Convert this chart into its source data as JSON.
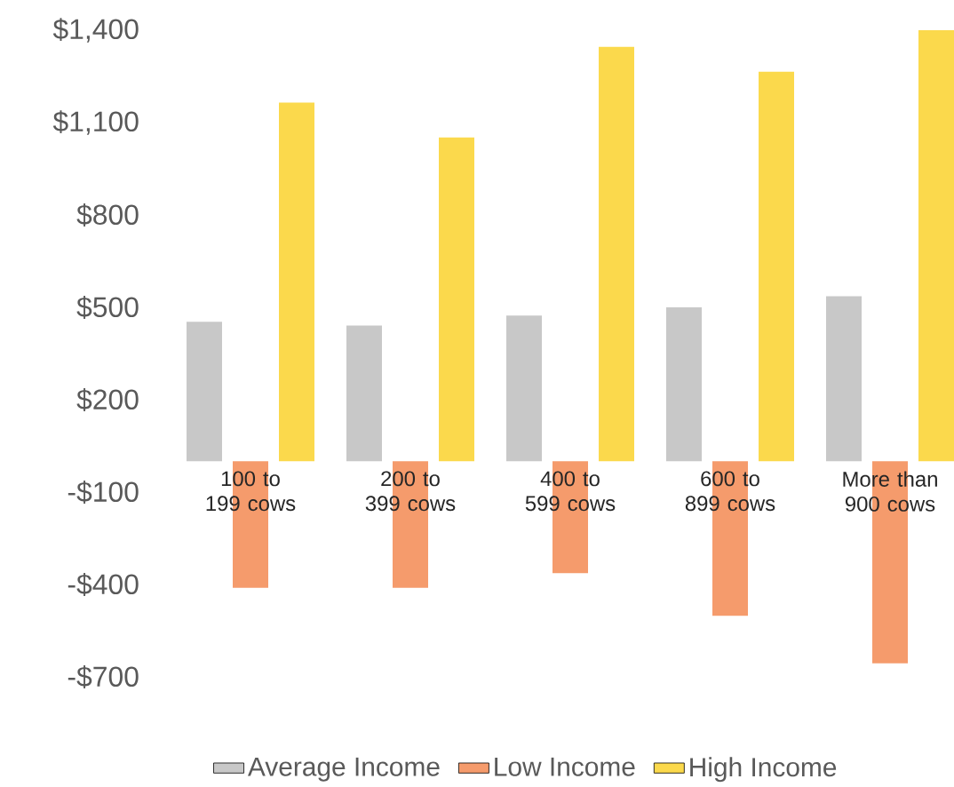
{
  "chart_data": {
    "type": "bar",
    "categories": [
      "100 to 199 cows",
      "200 to 399 cows",
      "400 to 599 cows",
      "600 to 899 cows",
      "More than 900 cows"
    ],
    "series": [
      {
        "name": "Average Income",
        "color": "#c8c8c8",
        "values": [
          453,
          441,
          473,
          500,
          536
        ]
      },
      {
        "name": "Low Income",
        "color": "#f59b6c",
        "values": [
          -411,
          -411,
          -363,
          -502,
          -656
        ]
      },
      {
        "name": "High Income",
        "color": "#fbd94c",
        "values": [
          1165,
          1052,
          1346,
          1265,
          1400
        ]
      }
    ],
    "ylim": [
      -700,
      1400
    ],
    "yticks": [
      {
        "value": -700,
        "label": "-$700"
      },
      {
        "value": -400,
        "label": "-$400"
      },
      {
        "value": -100,
        "label": "-$100"
      },
      {
        "value": 200,
        "label": "$200"
      },
      {
        "value": 500,
        "label": "$500"
      },
      {
        "value": 800,
        "label": "$800"
      },
      {
        "value": 1100,
        "label": "$1,100"
      },
      {
        "value": 1400,
        "label": "$1,400"
      }
    ],
    "legend": "bottom"
  }
}
